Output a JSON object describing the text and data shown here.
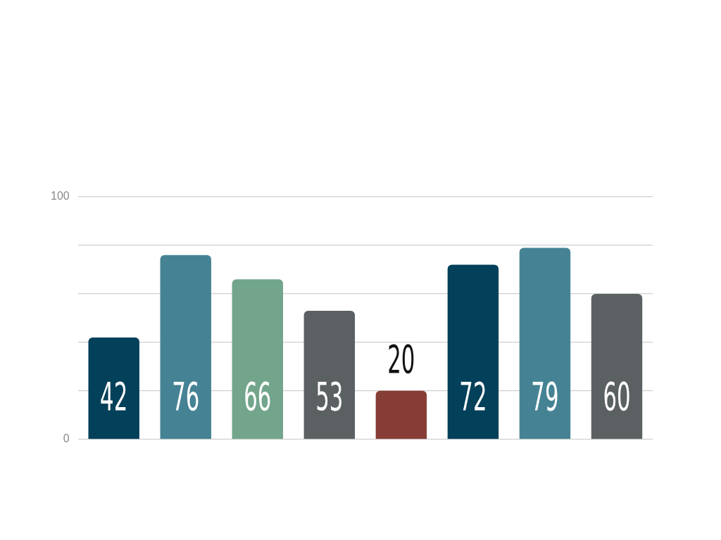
{
  "chart_data": {
    "type": "bar",
    "categories": [
      null,
      null,
      null,
      null,
      null,
      null,
      null,
      null
    ],
    "values": [
      42,
      76,
      66,
      53,
      20,
      72,
      79,
      60
    ],
    "colors": [
      "#03405a",
      "#458394",
      "#72a58b",
      "#5b6163",
      "#863d35",
      "#03405a",
      "#458394",
      "#5b6163"
    ],
    "ylim": [
      0,
      100
    ],
    "yticks": [
      0,
      {
        "value": 20,
        "label": null
      },
      {
        "value": 40,
        "label": null
      },
      {
        "value": 60,
        "label": null
      },
      {
        "value": 80,
        "label": null
      },
      100
    ],
    "grid": "y",
    "data_labels": true
  }
}
